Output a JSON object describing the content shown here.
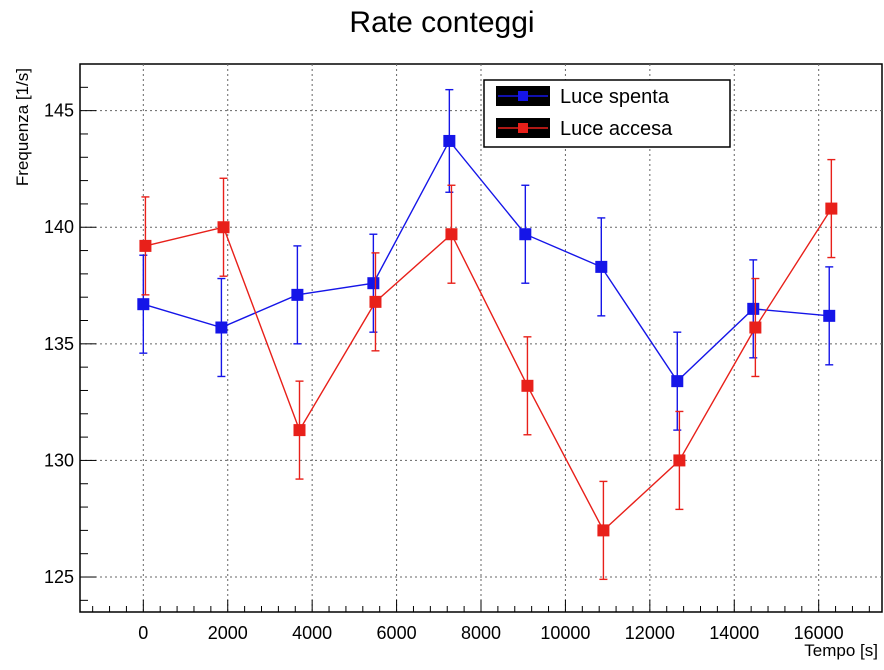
{
  "chart_data": {
    "type": "line",
    "title": "Rate conteggi",
    "xlabel": "Tempo [s]",
    "ylabel": "Frequenza [1/s]",
    "xlim": [
      -1500,
      17500
    ],
    "ylim": [
      123.5,
      147
    ],
    "x_ticks": [
      0,
      2000,
      4000,
      6000,
      8000,
      10000,
      12000,
      14000,
      16000
    ],
    "y_ticks": [
      125,
      130,
      135,
      140,
      145
    ],
    "grid": true,
    "legend_position": "top-right",
    "series": [
      {
        "name": "Luce spenta",
        "color": "#1515e8",
        "marker": "square",
        "points": [
          {
            "x": 0,
            "y": 136.7,
            "err": 2.1
          },
          {
            "x": 1850,
            "y": 135.7,
            "err": 2.1
          },
          {
            "x": 3650,
            "y": 137.1,
            "err": 2.1
          },
          {
            "x": 5450,
            "y": 137.6,
            "err": 2.1
          },
          {
            "x": 7250,
            "y": 143.7,
            "err": 2.2
          },
          {
            "x": 9050,
            "y": 139.7,
            "err": 2.1
          },
          {
            "x": 10850,
            "y": 138.3,
            "err": 2.1
          },
          {
            "x": 12650,
            "y": 133.4,
            "err": 2.1
          },
          {
            "x": 14450,
            "y": 136.5,
            "err": 2.1
          },
          {
            "x": 16250,
            "y": 136.2,
            "err": 2.1
          }
        ]
      },
      {
        "name": "Luce accesa",
        "color": "#e8201a",
        "marker": "square",
        "points": [
          {
            "x": 50,
            "y": 139.2,
            "err": 2.1
          },
          {
            "x": 1900,
            "y": 140.0,
            "err": 2.1
          },
          {
            "x": 3700,
            "y": 131.3,
            "err": 2.1
          },
          {
            "x": 5500,
            "y": 136.8,
            "err": 2.1
          },
          {
            "x": 7300,
            "y": 139.7,
            "err": 2.1
          },
          {
            "x": 9100,
            "y": 133.2,
            "err": 2.1
          },
          {
            "x": 10900,
            "y": 127.0,
            "err": 2.1
          },
          {
            "x": 12700,
            "y": 130.0,
            "err": 2.1
          },
          {
            "x": 14500,
            "y": 135.7,
            "err": 2.1
          },
          {
            "x": 16300,
            "y": 140.8,
            "err": 2.1
          }
        ]
      }
    ]
  }
}
